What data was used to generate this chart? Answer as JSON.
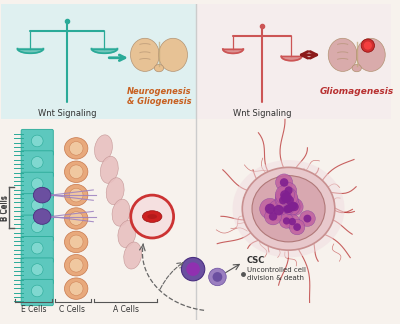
{
  "bg_color": "#f7f2ed",
  "upper_bg": "#eef5f5",
  "upper_bg_right": "#f5eeed",
  "teal": "#2aaa98",
  "teal_cell_face": "#5dc8be",
  "teal_cell_edge": "#2aaa98",
  "orange_cell": "#e8a97c",
  "orange_cell_edge": "#c8784c",
  "red_scale": "#cc5555",
  "red_pale": "#e8c0c0",
  "red_vessel": "#b83030",
  "purple": "#6b4fa0",
  "purple_light": "#9b7fc0",
  "brain_left": "#e8c090",
  "brain_right": "#d8a8a8",
  "tumor_outer": "#e8c8cc",
  "tumor_inner": "#d8a8b0",
  "tumor_cell": "#c060a0",
  "tumor_nucleus": "#802090",
  "text_dark": "#333333",
  "text_orange": "#c86020",
  "text_red": "#b83030",
  "divider": "#cccccc",
  "text_neurogenesis": "Neurogenesis\n& Gliogenesis",
  "text_gliogenesis": "Gliomagenesis",
  "text_wnt_left": "Wnt Signaling",
  "text_wnt_right": "Wnt Signaling",
  "text_ecells": "E Cells",
  "text_ccells": "C Cells",
  "text_acells": "A Cells",
  "text_bcells": "B Cells",
  "text_csc": "CSC",
  "text_uncontrolled": "Uncontrolled cell\ndivision & death"
}
